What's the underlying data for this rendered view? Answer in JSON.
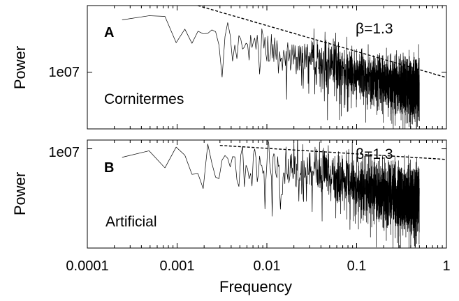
{
  "chart_data": [
    {
      "panel": "A",
      "type": "line",
      "xscale": "log",
      "yscale": "log",
      "xlim": [
        0.0001,
        1
      ],
      "xticks": [
        "0.0001",
        "0.001",
        "0.01",
        "0.1",
        "1"
      ],
      "show_xtick_labels": false,
      "ylabel": "Power",
      "yticks": [
        {
          "value": 10000000,
          "label": "1e07"
        }
      ],
      "ylim": [
        550000,
        300000000
      ],
      "annotation_panel": "A",
      "annotation_name": "Cornitermes",
      "annotation_beta": "β=1.3",
      "series": [
        {
          "kind": "spectrum",
          "f_min": 0.000244,
          "f_max": 0.5,
          "color": "#000000",
          "envelope": [
            [
              0.000244,
              190000000
            ],
            [
              0.0005,
              160000000
            ],
            [
              0.001,
              110000000
            ],
            [
              0.002,
              65000000
            ],
            [
              0.005,
              42000000
            ],
            [
              0.01,
              30000000
            ],
            [
              0.03,
              19000000
            ],
            [
              0.1,
              9000000
            ],
            [
              0.3,
              5500000
            ],
            [
              0.5,
              4700000
            ]
          ]
        },
        {
          "kind": "fit",
          "label": "β=1.3",
          "beta": 1.3,
          "style": "dashed",
          "points": [
            [
              0.0017,
              300000000
            ],
            [
              1.0,
              7600000
            ]
          ]
        }
      ]
    },
    {
      "panel": "B",
      "type": "line",
      "xscale": "log",
      "yscale": "log",
      "xlim": [
        0.0001,
        1
      ],
      "xticks": [
        "0.0001",
        "0.001",
        "0.01",
        "0.1",
        "1"
      ],
      "show_xtick_labels": true,
      "xlabel": "Frequency",
      "ylabel": "Power",
      "yticks": [
        {
          "value": 10000000,
          "label": "1e07"
        }
      ],
      "ylim": [
        100000,
        15000000
      ],
      "annotation_panel": "B",
      "annotation_name": "Artificial",
      "annotation_beta": "β=1.3",
      "series": [
        {
          "kind": "spectrum",
          "f_min": 0.000244,
          "f_max": 0.5,
          "color": "#000000",
          "envelope": [
            [
              0.000244,
              10000000
            ],
            [
              0.0005,
              8200000
            ],
            [
              0.001,
              7000000
            ],
            [
              0.003,
              6200000
            ],
            [
              0.01,
              5200000
            ],
            [
              0.03,
              3600000
            ],
            [
              0.1,
              1900000
            ],
            [
              0.3,
              1100000
            ],
            [
              0.5,
              950000
            ]
          ]
        },
        {
          "kind": "fit",
          "label": "β=1.3",
          "beta": 1.3,
          "style": "dashed",
          "points": [
            [
              0.003,
              11700000
            ],
            [
              1.0,
              6100000
            ]
          ]
        }
      ]
    }
  ]
}
